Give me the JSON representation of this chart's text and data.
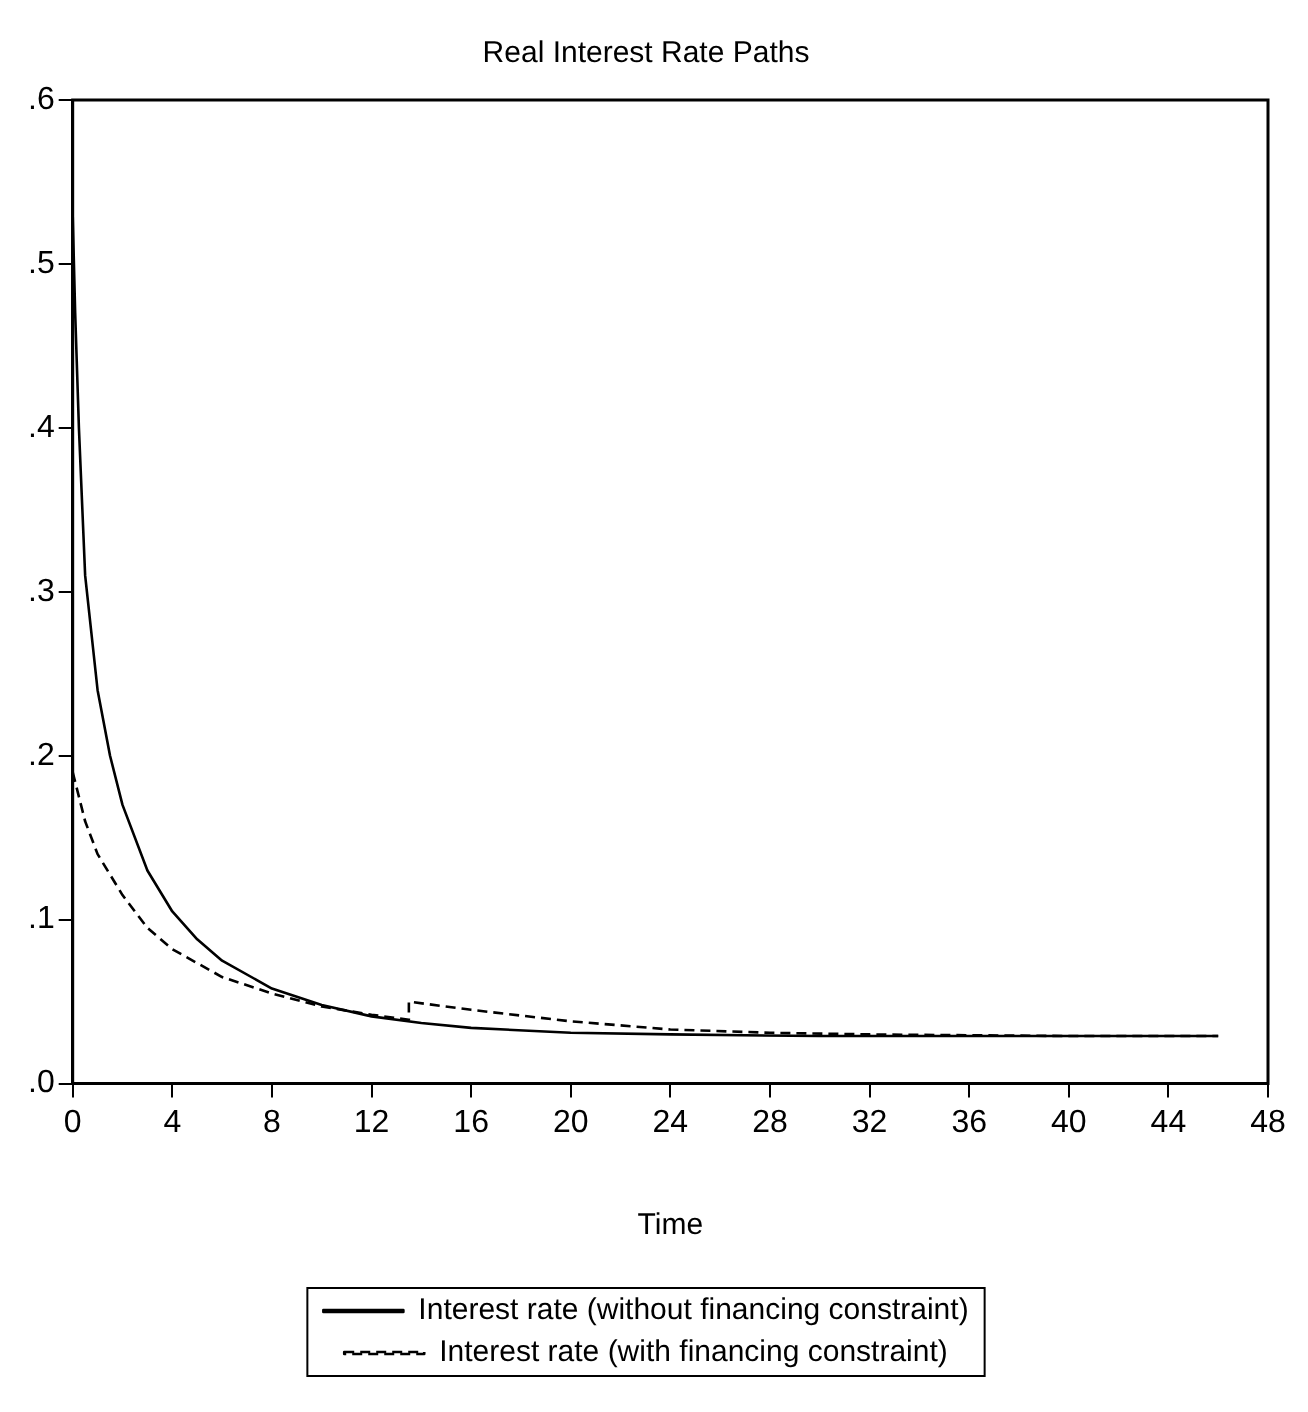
{
  "chart_data": {
    "type": "line",
    "title": "Real Interest Rate Paths",
    "xlabel": "Time",
    "xlim": [
      0,
      48
    ],
    "xticks": [
      0,
      4,
      8,
      12,
      16,
      20,
      24,
      28,
      32,
      36,
      40,
      44,
      48
    ],
    "ylim": [
      0,
      0.6
    ],
    "yticks": [
      {
        "value": 0,
        "label": ".0"
      },
      {
        "value": 0.1,
        "label": ".1"
      },
      {
        "value": 0.2,
        "label": ".2"
      },
      {
        "value": 0.3,
        "label": ".3"
      },
      {
        "value": 0.4,
        "label": ".4"
      },
      {
        "value": 0.5,
        "label": ".5"
      },
      {
        "value": 0.6,
        "label": ".6"
      }
    ],
    "grid": false,
    "legend": "bottom",
    "marker": "none",
    "series": [
      {
        "name": "Interest rate (without financing constraint)",
        "color": "#000000",
        "line_style": "solid",
        "x": [
          0,
          0.1,
          0.25,
          0.5,
          1,
          1.5,
          2,
          3,
          4,
          5,
          6,
          8,
          10,
          12,
          14,
          16,
          20,
          24,
          30,
          40,
          46
        ],
        "values": [
          0.53,
          0.47,
          0.4,
          0.31,
          0.24,
          0.2,
          0.17,
          0.13,
          0.105,
          0.088,
          0.075,
          0.058,
          0.048,
          0.041,
          0.037,
          0.034,
          0.031,
          0.03,
          0.029,
          0.029,
          0.029
        ]
      },
      {
        "name": "Interest rate (with financing constraint)",
        "color": "#000000",
        "line_style": "dashed",
        "x": [
          0,
          0.5,
          1,
          2,
          3,
          4,
          6,
          8,
          10,
          12,
          13.5,
          13.5,
          16,
          20,
          24,
          28,
          32,
          40,
          46
        ],
        "values": [
          0.19,
          0.16,
          0.14,
          0.115,
          0.095,
          0.082,
          0.065,
          0.055,
          0.047,
          0.042,
          0.039,
          0.05,
          0.045,
          0.038,
          0.033,
          0.031,
          0.03,
          0.029,
          0.029
        ]
      }
    ]
  }
}
